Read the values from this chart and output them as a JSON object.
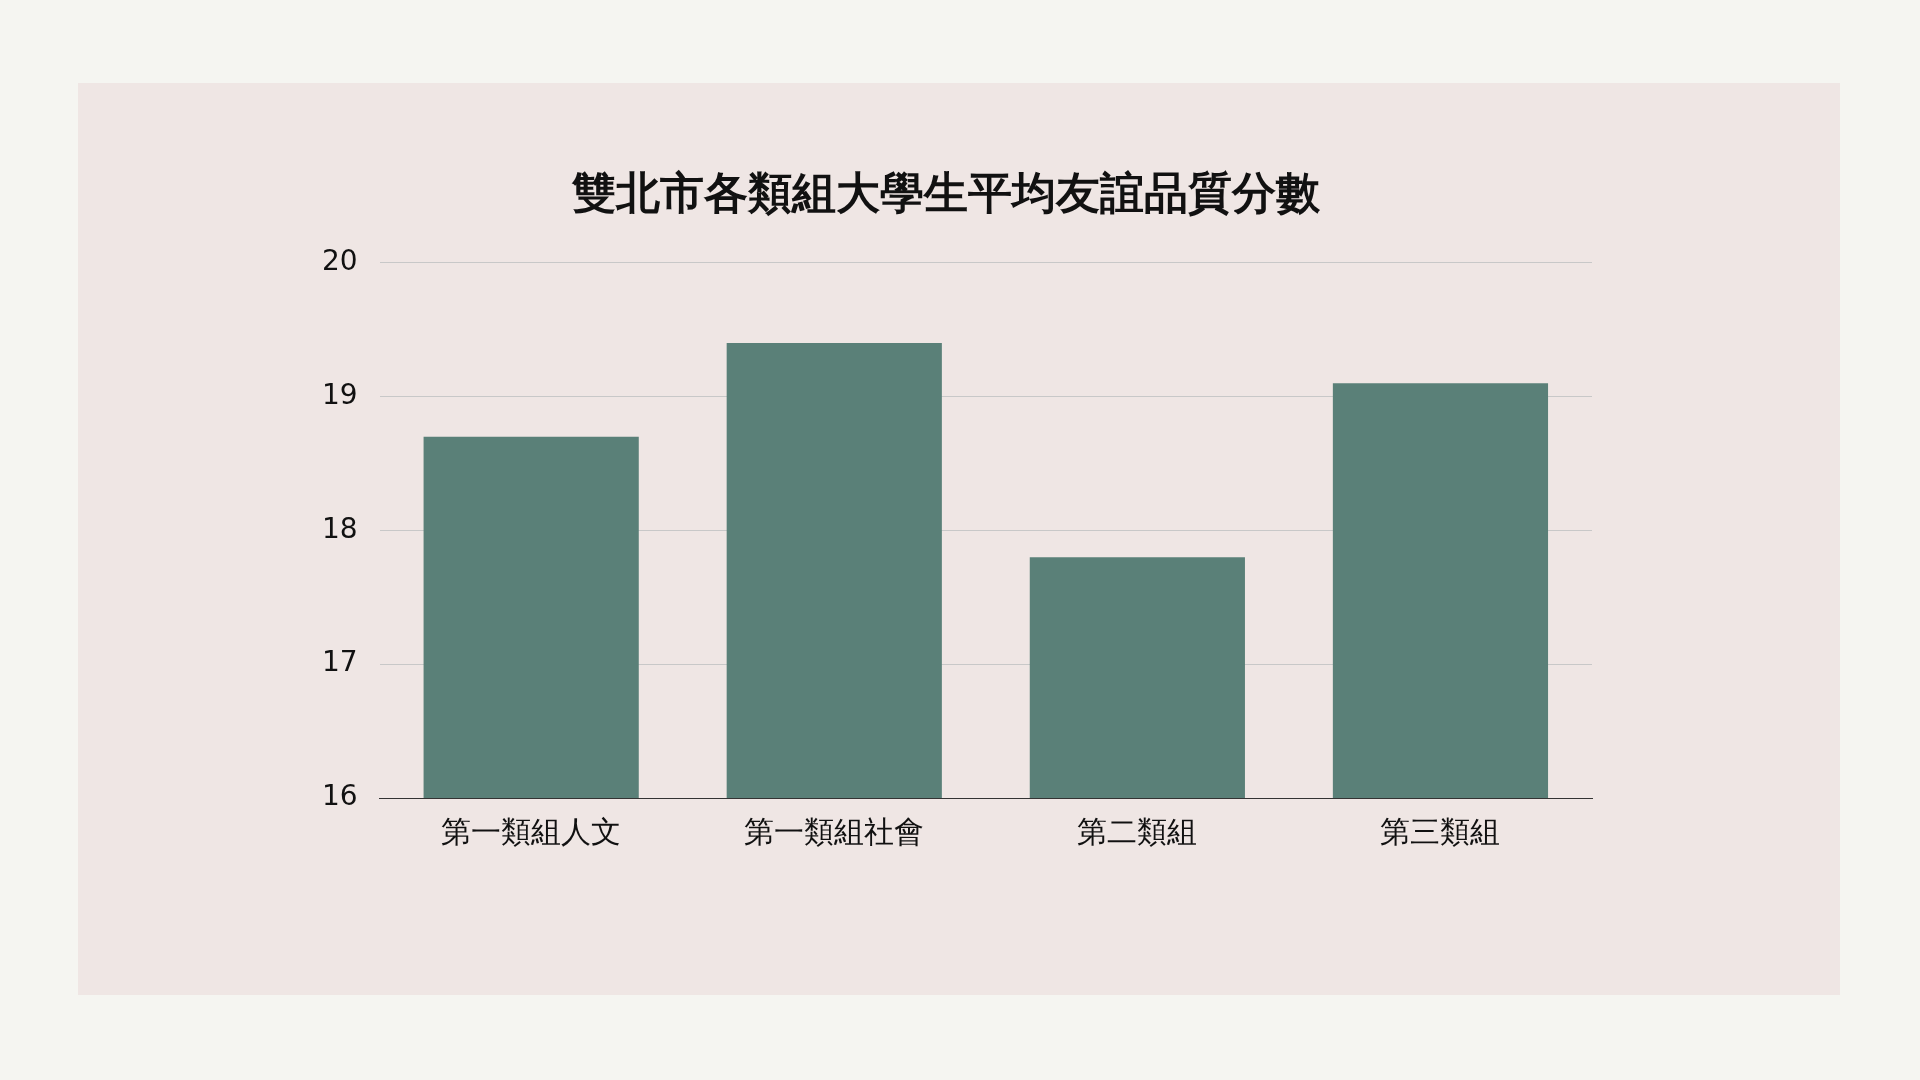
{
  "chart_data": {
    "type": "bar",
    "title": "雙北市各類組大學生平均友誼品質分數",
    "categories": [
      "第一類組人文",
      "第一類組社會",
      "第二類組",
      "第三類組"
    ],
    "values": [
      18.7,
      19.4,
      17.8,
      19.1
    ],
    "color": "#5a8078",
    "ylim": [
      16,
      20
    ],
    "yticks": [
      16,
      17,
      18,
      19,
      20
    ],
    "grid": "y",
    "legend": false
  }
}
